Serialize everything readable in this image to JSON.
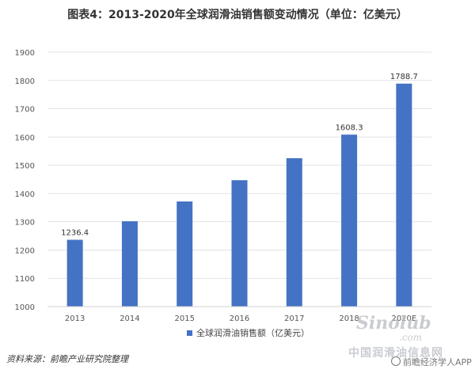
{
  "title": "图表4：2013-2020年全球润滑油销售额变动情况（单位：亿美元）",
  "source": "资料来源：前瞻产业研究院整理",
  "watermarks": {
    "site": "Sinolub",
    "site_sub": ".com",
    "site_cn": "中国润滑油信息网",
    "app": "前瞻经济学人APP"
  },
  "colors": {
    "bar": "#4472C4",
    "grid": "#e3e3e3",
    "axis": "#d0d0d0"
  },
  "chart_data": {
    "type": "bar",
    "categories": [
      "2013",
      "2014",
      "2015",
      "2016",
      "2017",
      "2018",
      "2020E"
    ],
    "series": [
      {
        "name": "全球润滑油销售额（亿美元）",
        "values": [
          1236.4,
          1302,
          1372,
          1447,
          1525,
          1608.3,
          1788.7
        ],
        "labels": [
          "1236.4",
          "",
          "",
          "",
          "",
          "1608.3",
          "1788.7"
        ]
      }
    ],
    "ylim": [
      1000,
      1900
    ],
    "yticks": [
      1000,
      1100,
      1200,
      1300,
      1400,
      1500,
      1600,
      1700,
      1800,
      1900
    ],
    "grid": true,
    "legend": "bottom"
  }
}
